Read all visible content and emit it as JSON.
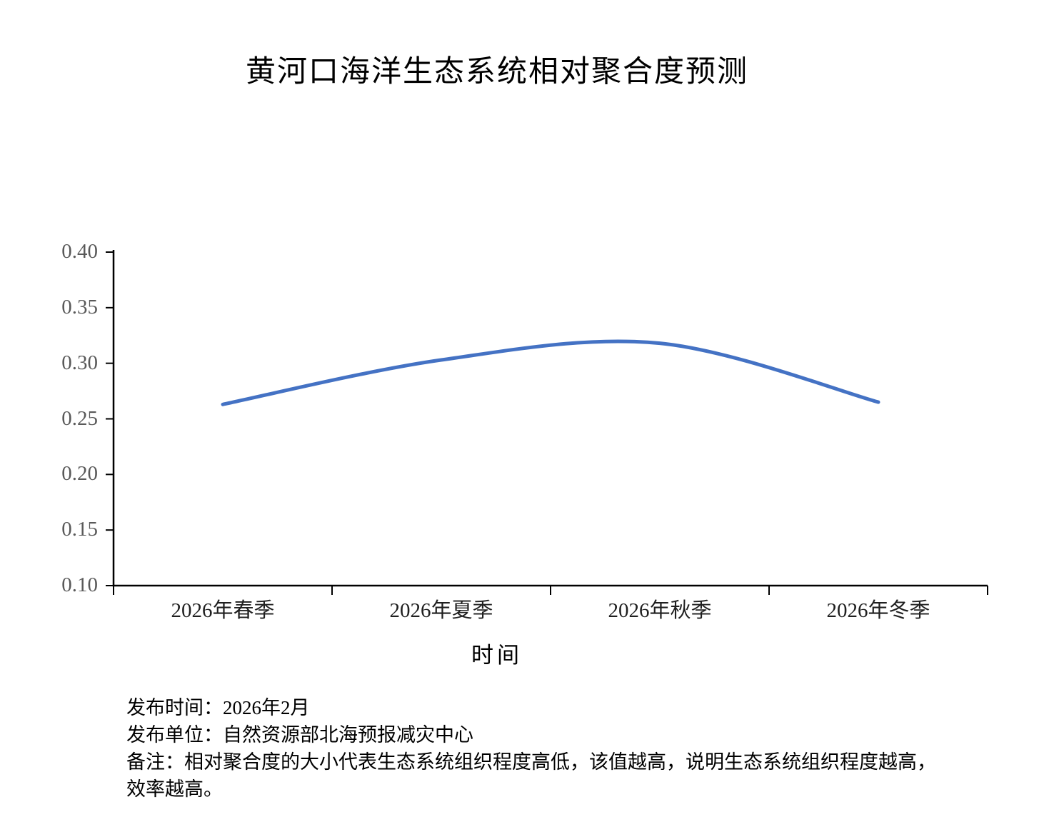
{
  "chart_data": {
    "type": "line",
    "title": "黄河口海洋生态系统相对聚合度预测",
    "categories": [
      "2026年春季",
      "2026年夏季",
      "2026年秋季",
      "2026年冬季"
    ],
    "values": [
      0.263,
      0.303,
      0.318,
      0.265
    ],
    "xlabel": "时间",
    "ylabel": "",
    "ylim": [
      0.1,
      0.4
    ],
    "ytick_step": 0.05,
    "ytick_decimals": 2,
    "grid": false,
    "legend_position": "none",
    "line_style": "smooth",
    "colors": {
      "line": "#4472C4",
      "axis": "#000000",
      "ytick_labels": "#595959",
      "xtick_labels": "#1f1f1f"
    }
  },
  "footer": {
    "lines": [
      "发布时间：2026年2月",
      "发布单位：自然资源部北海预报减灾中心",
      "备注：相对聚合度的大小代表生态系统组织程度高低，该值越高，说明生态系统组织程度越高，",
      "效率越高。"
    ]
  }
}
